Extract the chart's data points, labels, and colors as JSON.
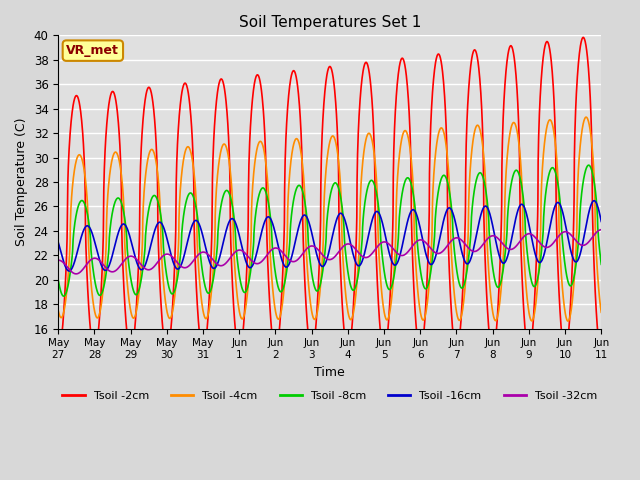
{
  "title": "Soil Temperatures Set 1",
  "xlabel": "Time",
  "ylabel": "Soil Temperature (C)",
  "ylim": [
    16,
    40
  ],
  "yticks": [
    16,
    18,
    20,
    22,
    24,
    26,
    28,
    30,
    32,
    34,
    36,
    38,
    40
  ],
  "background_color": "#d8d8d8",
  "plot_bg_color": "#e0e0e0",
  "grid_color": "#ffffff",
  "annotation_text": "VR_met",
  "annotation_bg": "#ffff99",
  "annotation_border": "#cc8800",
  "annotation_text_color": "#8b0000",
  "legend_entries": [
    "Tsoil -2cm",
    "Tsoil -4cm",
    "Tsoil -8cm",
    "Tsoil -16cm",
    "Tsoil -32cm"
  ],
  "colors": [
    "#ff0000",
    "#ff8c00",
    "#00cc00",
    "#0000cc",
    "#aa00aa"
  ],
  "line_width": 1.2,
  "xtick_labels": [
    "May 27",
    "May 28",
    "May 29",
    "May 30",
    "May 31",
    "Jun 1",
    "Jun 2",
    "Jun 3",
    "Jun 4",
    "Jun 5",
    "Jun 6",
    "Jun 7",
    "Jun 8",
    "Jun 9",
    "Jun 10",
    "Jun 11"
  ],
  "xtick_positions": [
    0,
    1,
    2,
    3,
    4,
    5,
    6,
    7,
    8,
    9,
    10,
    11,
    12,
    13,
    14,
    15
  ]
}
